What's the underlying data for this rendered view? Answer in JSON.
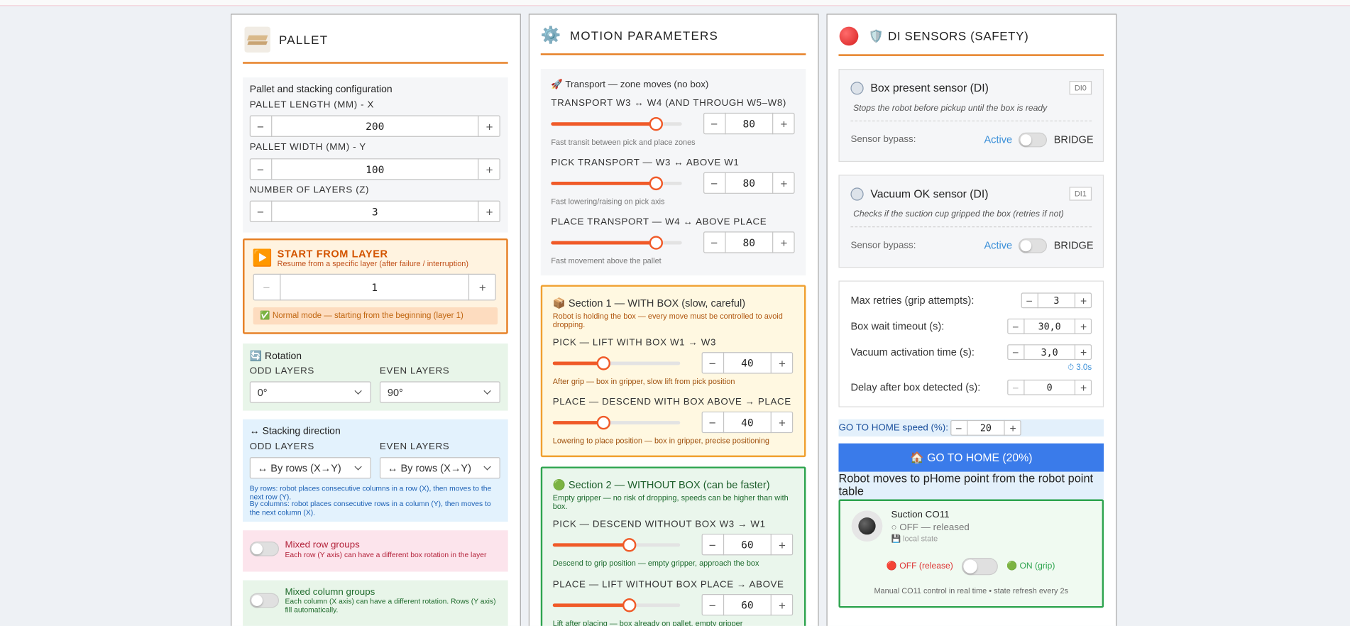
{
  "controls": {
    "minus": "−",
    "plus": "+"
  },
  "slider_range": [
    0,
    100
  ],
  "pallet": {
    "title": "PALLET",
    "config_title": "Pallet and stacking configuration",
    "fields": [
      {
        "label": "PALLET LENGTH (MM) - X",
        "value": 200
      },
      {
        "label": "PALLET WIDTH (MM) - Y",
        "value": 100
      },
      {
        "label": "NUMBER OF LAYERS (Z)",
        "value": 3
      }
    ],
    "start": {
      "icon": "▶️",
      "title": "START FROM LAYER",
      "subtitle": "Resume from a specific layer (after failure / interruption)",
      "value": 1,
      "note": "✅ Normal mode — starting from the beginning (layer 1)"
    },
    "rotation": {
      "title": "🔄 Rotation",
      "odd_label": "ODD LAYERS",
      "odd_value": "0°",
      "even_label": "EVEN LAYERS",
      "even_value": "90°"
    },
    "stacking": {
      "title": "↔ Stacking direction",
      "odd_label": "ODD LAYERS",
      "odd_value": "↔ By rows (X→Y)",
      "even_label": "EVEN LAYERS",
      "even_value": "↔ By rows (X→Y)",
      "note_rows": "By rows: robot places consecutive columns in a row (X), then moves to the next row (Y).",
      "note_columns": "By columns: robot places consecutive rows in a column (Y), then moves to the next column (X)."
    },
    "mixed_rows": {
      "title": "Mixed row groups",
      "subtitle": "Each row (Y axis) can have a different box rotation in the layer"
    },
    "mixed_columns": {
      "title": "Mixed column groups",
      "subtitle": "Each column (X axis) can have a different rotation. Rows (Y axis) fill automatically."
    }
  },
  "motion": {
    "icon": "⚙️",
    "title": "MOTION PARAMETERS",
    "transport": {
      "title": "🚀 Transport — zone moves (no box)",
      "sliders": [
        {
          "label": "TRANSPORT W3 ↔ W4 (AND THROUGH W5–W8)",
          "value": 80,
          "help": "Fast transit between pick and place zones"
        },
        {
          "label": "PICK TRANSPORT — W3 ↔ ABOVE W1",
          "value": 80,
          "help": "Fast lowering/raising on pick axis"
        },
        {
          "label": "PLACE TRANSPORT — W4 ↔ ABOVE PLACE",
          "value": 80,
          "help": "Fast movement above the pallet"
        }
      ]
    },
    "section1": {
      "title": "📦 Section 1 — WITH BOX (slow, careful)",
      "description": "Robot is holding the box — every move must be controlled to avoid dropping.",
      "sliders": [
        {
          "label": "PICK — LIFT WITH BOX W1 → W3",
          "value": 40,
          "help": "After grip — box in gripper, slow lift from pick position"
        },
        {
          "label": "PLACE — DESCEND WITH BOX ABOVE → PLACE",
          "value": 40,
          "help": "Lowering to place position — box in gripper, precise positioning"
        }
      ]
    },
    "section2": {
      "title": "🟢 Section 2 — WITHOUT BOX (can be faster)",
      "description": "Empty gripper — no risk of dropping, speeds can be higher than with box.",
      "sliders": [
        {
          "label": "PICK — DESCEND WITHOUT BOX W3 → W1",
          "value": 60,
          "help": "Descend to grip position — empty gripper, approach the box"
        },
        {
          "label": "PLACE — LIFT WITHOUT BOX PLACE → ABOVE",
          "value": 60,
          "help": "Lift after placing — box already on pallet, empty gripper"
        }
      ]
    }
  },
  "sensors": {
    "title": "🛡️ DI SENSORS (SAFETY)",
    "items": [
      {
        "name": "Box present sensor (DI)",
        "badge": "DI0",
        "description": "Stops the robot before pickup until the box is ready",
        "bypass_label": "Sensor bypass:",
        "state": "Active",
        "bridge": "BRIDGE"
      },
      {
        "name": "Vacuum OK sensor (DI)",
        "badge": "DI1",
        "description": "Checks if the suction cup gripped the box (retries if not)",
        "bypass_label": "Sensor bypass:",
        "state": "Active",
        "bridge": "BRIDGE"
      }
    ],
    "params": [
      {
        "label": "Max retries (grip attempts):",
        "value": 3
      },
      {
        "label": "Box wait timeout (s):",
        "value": "30,0"
      },
      {
        "label": "Vacuum activation time (s):",
        "value": "3,0",
        "hint": "⏱ 3.0s"
      },
      {
        "label": "Delay after box detected (s):",
        "value": 0
      }
    ],
    "home": {
      "speed_label": "GO TO HOME speed (%):",
      "speed": 20,
      "button": "🏠 GO TO HOME (20%)",
      "note": "Robot moves to pHome point from the robot point table"
    },
    "suction": {
      "title": "Suction CO11",
      "state": "○ OFF — released",
      "source": "💾 local state",
      "off_label": "🔴 OFF (release)",
      "on_label": "🟢 ON (grip)",
      "footer": "Manual CO11 control in real time • state refresh every 2s"
    }
  }
}
